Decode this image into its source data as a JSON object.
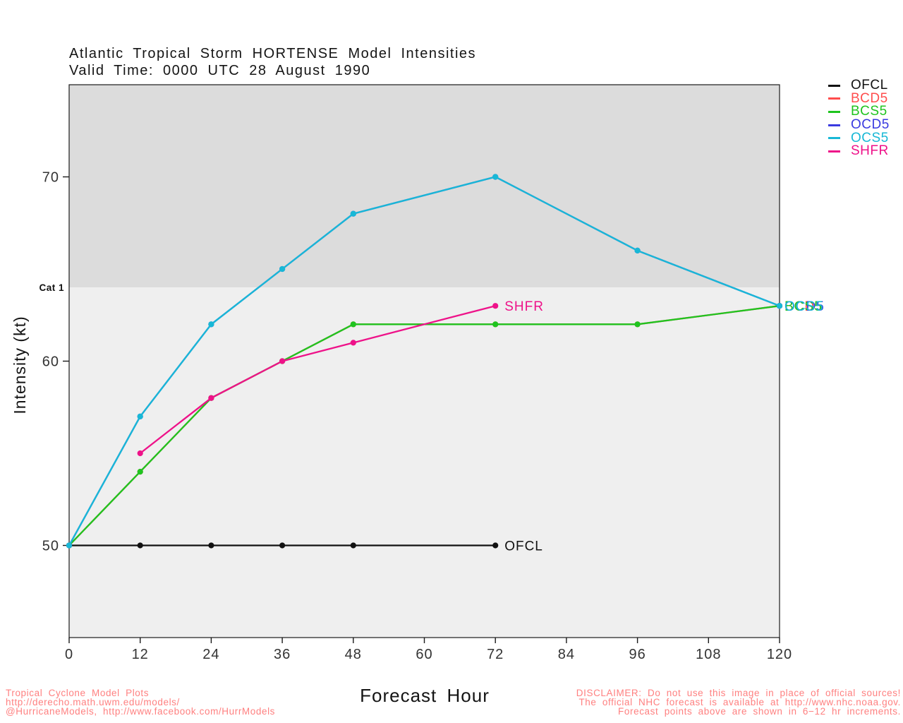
{
  "chart_data": {
    "type": "line",
    "title": "Atlantic Tropical Storm HORTENSE Model Intensities",
    "subtitle": "Valid Time: 0000 UTC 28 August 1990",
    "xlabel": "Forecast Hour",
    "ylabel": "Intensity (kt)",
    "xlim": [
      0,
      120
    ],
    "ylim": [
      45,
      75
    ],
    "xticks": [
      0,
      12,
      24,
      36,
      48,
      60,
      72,
      84,
      96,
      108,
      120
    ],
    "yticks": [
      50,
      60,
      70
    ],
    "grid": false,
    "legend_position": "outside-top-right",
    "category_threshold": {
      "value": 64,
      "label": "Cat 1"
    },
    "band_above_cat1_color": "#dcdcdc",
    "band_below_cat1_color": "#efefef",
    "series": [
      {
        "name": "OFCL",
        "color": "#111111",
        "x": [
          0,
          12,
          24,
          36,
          48,
          72
        ],
        "y": [
          50,
          50,
          50,
          50,
          50,
          50
        ],
        "end_label": "OFCL"
      },
      {
        "name": "BCD5",
        "color": "#ff4d4d",
        "x": [
          0,
          12,
          24,
          36,
          48,
          72,
          96,
          120
        ],
        "y": [
          50,
          54,
          58,
          60,
          62,
          62,
          62,
          63
        ],
        "end_label": "BCD5"
      },
      {
        "name": "BCS5",
        "color": "#1fc41f",
        "x": [
          0,
          12,
          24,
          36,
          48,
          72,
          96,
          120
        ],
        "y": [
          50,
          54,
          58,
          60,
          62,
          62,
          62,
          63
        ],
        "end_label": "BCS5"
      },
      {
        "name": "OCD5",
        "color": "#3a3ae0",
        "x": [
          0,
          12,
          24,
          36,
          48,
          72,
          96,
          120
        ],
        "y": [
          50,
          57,
          62,
          65,
          68,
          70,
          66,
          63
        ],
        "end_label": "OCD5"
      },
      {
        "name": "OCS5",
        "color": "#18b8d6",
        "x": [
          0,
          12,
          24,
          36,
          48,
          72,
          96,
          120
        ],
        "y": [
          50,
          57,
          62,
          65,
          68,
          70,
          66,
          63
        ],
        "end_label": "OCS5"
      },
      {
        "name": "SHFR",
        "color": "#ee1289",
        "x": [
          12,
          24,
          36,
          48,
          72
        ],
        "y": [
          55,
          58,
          60,
          61,
          63
        ],
        "end_label": "SHFR"
      }
    ]
  },
  "legend": {
    "items": [
      {
        "label": "OFCL",
        "color": "#111111"
      },
      {
        "label": "BCD5",
        "color": "#ff4d4d"
      },
      {
        "label": "BCS5",
        "color": "#1fc41f"
      },
      {
        "label": "OCD5",
        "color": "#3a3ae0"
      },
      {
        "label": "OCS5",
        "color": "#18b8d6"
      },
      {
        "label": "SHFR",
        "color": "#ee1289"
      }
    ]
  },
  "footer": {
    "credit_lines": [
      "Tropical Cyclone Model Plots",
      "http://derecho.math.uwm.edu/models/",
      "@HurricaneModels, http://www.facebook.com/HurrModels"
    ],
    "disclaimer_lines": [
      "DISCLAIMER: Do not use this image in place of official sources!",
      "The official NHC forecast is available at http://www.nhc.noaa.gov.",
      "Forecast points above are shown in 6−12 hr increments."
    ],
    "accent_color": "#ff8080"
  }
}
